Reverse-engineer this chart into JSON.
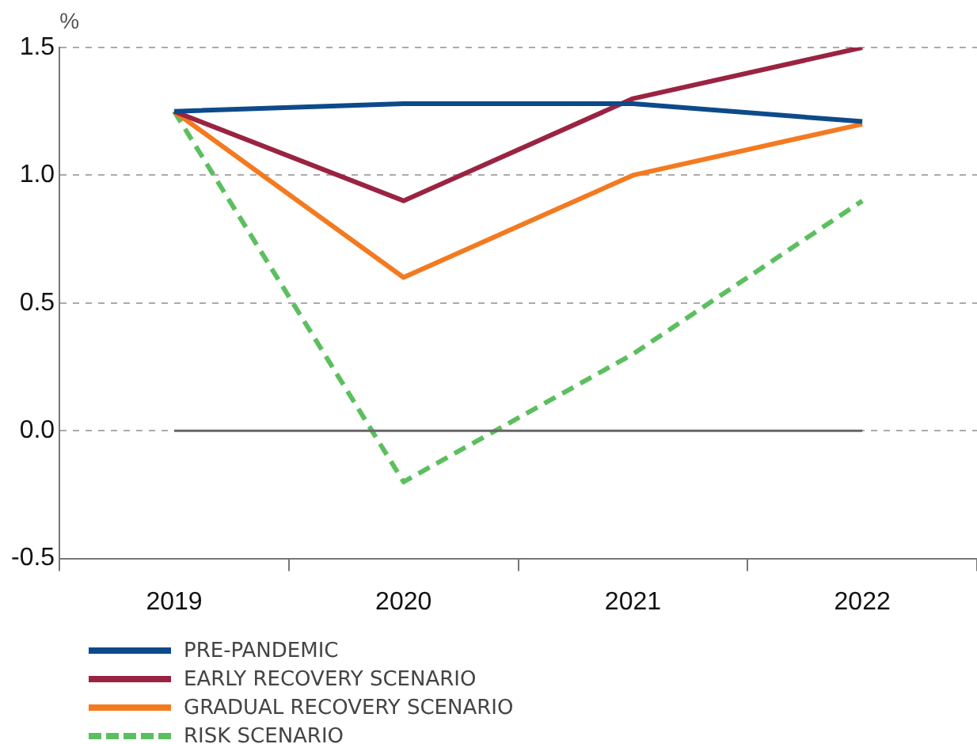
{
  "chart_data": {
    "type": "line",
    "ylabel": "%",
    "categories": [
      "2019",
      "2020",
      "2021",
      "2022"
    ],
    "series": [
      {
        "name": "PRE-PANDEMIC",
        "color": "#0d4a8a",
        "values": [
          1.25,
          1.28,
          1.28,
          1.21
        ]
      },
      {
        "name": "EARLY RECOVERY SCENARIO",
        "color": "#9b2342",
        "values": [
          1.25,
          0.9,
          1.3,
          1.5
        ]
      },
      {
        "name": "GRADUAL RECOVERY SCENARIO",
        "color": "#f47a20",
        "values": [
          1.25,
          0.6,
          1.0,
          1.2
        ]
      },
      {
        "name": "RISK SCENARIO",
        "color": "#5cbf5f",
        "values": [
          1.25,
          -0.2,
          0.3,
          0.9
        ],
        "line_style": "dashed"
      }
    ],
    "ylim": [
      -0.5,
      1.5
    ],
    "yticks": [
      {
        "value": -0.5,
        "label": "-0.5"
      },
      {
        "value": 0,
        "label": "0.0"
      },
      0.5,
      {
        "value": 1,
        "label": "1.0"
      },
      1.5
    ],
    "grid": "y",
    "legend": "bottom",
    "marker": "none",
    "line_style": "solid",
    "ref_lines": [
      {
        "axis": "y",
        "value": 0,
        "color": "#666666"
      }
    ]
  }
}
